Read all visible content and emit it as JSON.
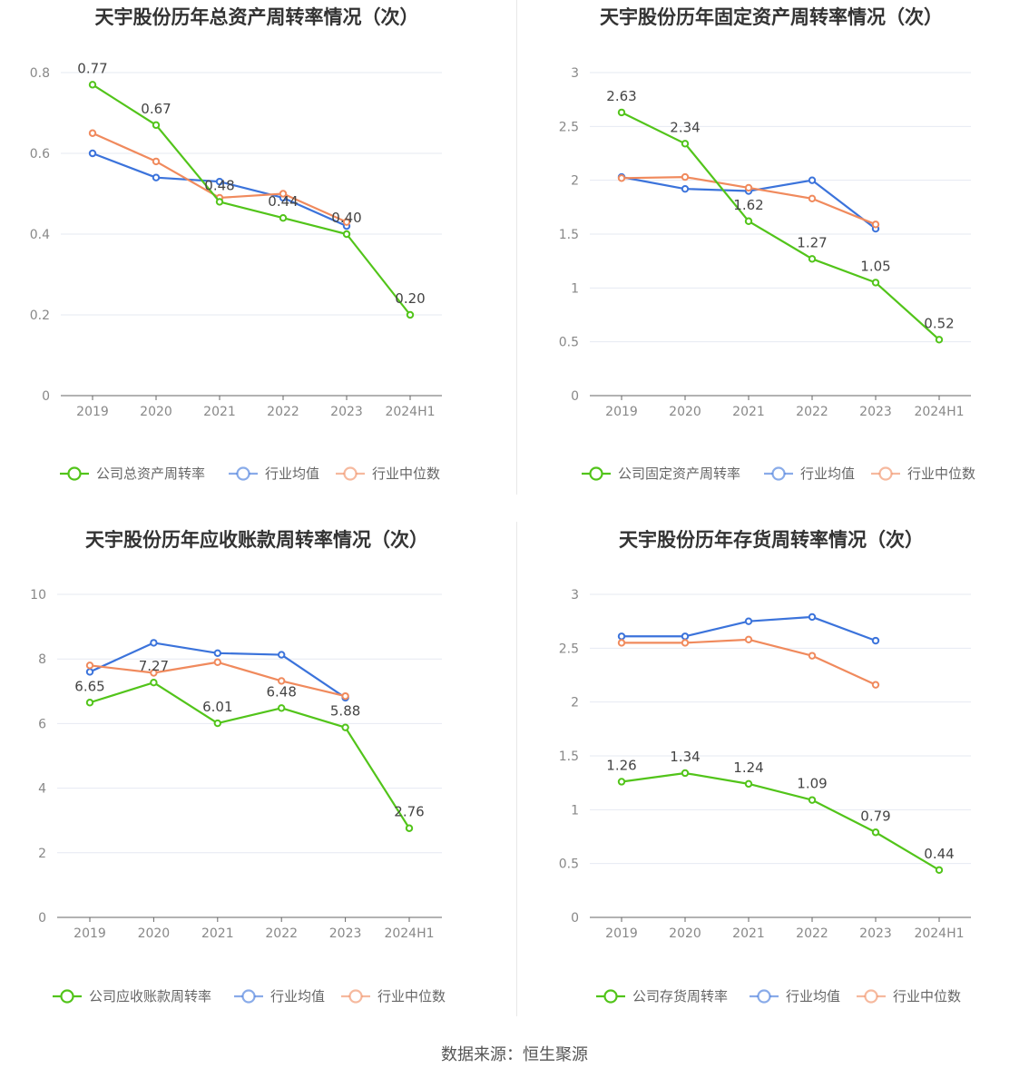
{
  "source_label": "数据来源：恒生聚源",
  "colors": {
    "company": "#52c41a",
    "avg": "#3b73db",
    "median": "#f08a5d"
  },
  "chart_data": [
    {
      "type": "line",
      "title": "天宇股份历年总资产周转率情况（次）",
      "categories": [
        "2019",
        "2020",
        "2021",
        "2022",
        "2023",
        "2024H1"
      ],
      "ylim": [
        0,
        0.8
      ],
      "yticks": [
        0,
        0.2,
        0.4,
        0.6,
        0.8
      ],
      "ytick_labels": [
        "0",
        "0.2",
        "0.4",
        "0.6",
        "0.8"
      ],
      "grid": true,
      "legend": "bottom",
      "series": [
        {
          "name": "公司总资产周转率",
          "role": "company",
          "values": [
            0.77,
            0.67,
            0.48,
            0.44,
            0.4,
            0.2
          ],
          "labels": [
            "0.77",
            "0.67",
            "0.48",
            "0.44",
            "0.40",
            "0.20"
          ]
        },
        {
          "name": "行业均值",
          "role": "avg",
          "values": [
            0.6,
            0.54,
            0.53,
            0.49,
            0.42,
            null
          ]
        },
        {
          "name": "行业中位数",
          "role": "median",
          "values": [
            0.65,
            0.58,
            0.49,
            0.5,
            0.43,
            null
          ]
        }
      ]
    },
    {
      "type": "line",
      "title": "天宇股份历年固定资产周转率情况（次）",
      "categories": [
        "2019",
        "2020",
        "2021",
        "2022",
        "2023",
        "2024H1"
      ],
      "ylim": [
        0,
        3
      ],
      "yticks": [
        0,
        0.5,
        1,
        1.5,
        2,
        2.5,
        3
      ],
      "ytick_labels": [
        "0",
        "0.5",
        "1",
        "1.5",
        "2",
        "2.5",
        "3"
      ],
      "grid": true,
      "legend": "bottom",
      "series": [
        {
          "name": "公司固定资产周转率",
          "role": "company",
          "values": [
            2.63,
            2.34,
            1.62,
            1.27,
            1.05,
            0.52
          ],
          "labels": [
            "2.63",
            "2.34",
            "1.62",
            "1.27",
            "1.05",
            "0.52"
          ]
        },
        {
          "name": "行业均值",
          "role": "avg",
          "values": [
            2.03,
            1.92,
            1.9,
            2.0,
            1.55,
            null
          ]
        },
        {
          "name": "行业中位数",
          "role": "median",
          "values": [
            2.02,
            2.03,
            1.93,
            1.83,
            1.59,
            null
          ]
        }
      ]
    },
    {
      "type": "line",
      "title": "天宇股份历年应收账款周转率情况（次）",
      "categories": [
        "2019",
        "2020",
        "2021",
        "2022",
        "2023",
        "2024H1"
      ],
      "ylim": [
        0,
        10
      ],
      "yticks": [
        0,
        2,
        4,
        6,
        8,
        10
      ],
      "ytick_labels": [
        "0",
        "2",
        "4",
        "6",
        "8",
        "10"
      ],
      "grid": true,
      "legend": "bottom",
      "series": [
        {
          "name": "公司应收账款周转率",
          "role": "company",
          "values": [
            6.65,
            7.27,
            6.01,
            6.48,
            5.88,
            2.76
          ],
          "labels": [
            "6.65",
            "7.27",
            "6.01",
            "6.48",
            "5.88",
            "2.76"
          ]
        },
        {
          "name": "行业均值",
          "role": "avg",
          "values": [
            7.6,
            8.5,
            8.18,
            8.13,
            6.8,
            null
          ]
        },
        {
          "name": "行业中位数",
          "role": "median",
          "values": [
            7.8,
            7.57,
            7.9,
            7.32,
            6.85,
            null
          ]
        }
      ]
    },
    {
      "type": "line",
      "title": "天宇股份历年存货周转率情况（次）",
      "categories": [
        "2019",
        "2020",
        "2021",
        "2022",
        "2023",
        "2024H1"
      ],
      "ylim": [
        0,
        3
      ],
      "yticks": [
        0,
        0.5,
        1,
        1.5,
        2,
        2.5,
        3
      ],
      "ytick_labels": [
        "0",
        "0.5",
        "1",
        "1.5",
        "2",
        "2.5",
        "3"
      ],
      "grid": true,
      "legend": "bottom",
      "series": [
        {
          "name": "公司存货周转率",
          "role": "company",
          "values": [
            1.26,
            1.34,
            1.24,
            1.09,
            0.79,
            0.44
          ],
          "labels": [
            "1.26",
            "1.34",
            "1.24",
            "1.09",
            "0.79",
            "0.44"
          ]
        },
        {
          "name": "行业均值",
          "role": "avg",
          "values": [
            2.61,
            2.61,
            2.75,
            2.79,
            2.57,
            null
          ]
        },
        {
          "name": "行业中位数",
          "role": "median",
          "values": [
            2.55,
            2.55,
            2.58,
            2.43,
            2.16,
            null
          ]
        }
      ]
    }
  ]
}
